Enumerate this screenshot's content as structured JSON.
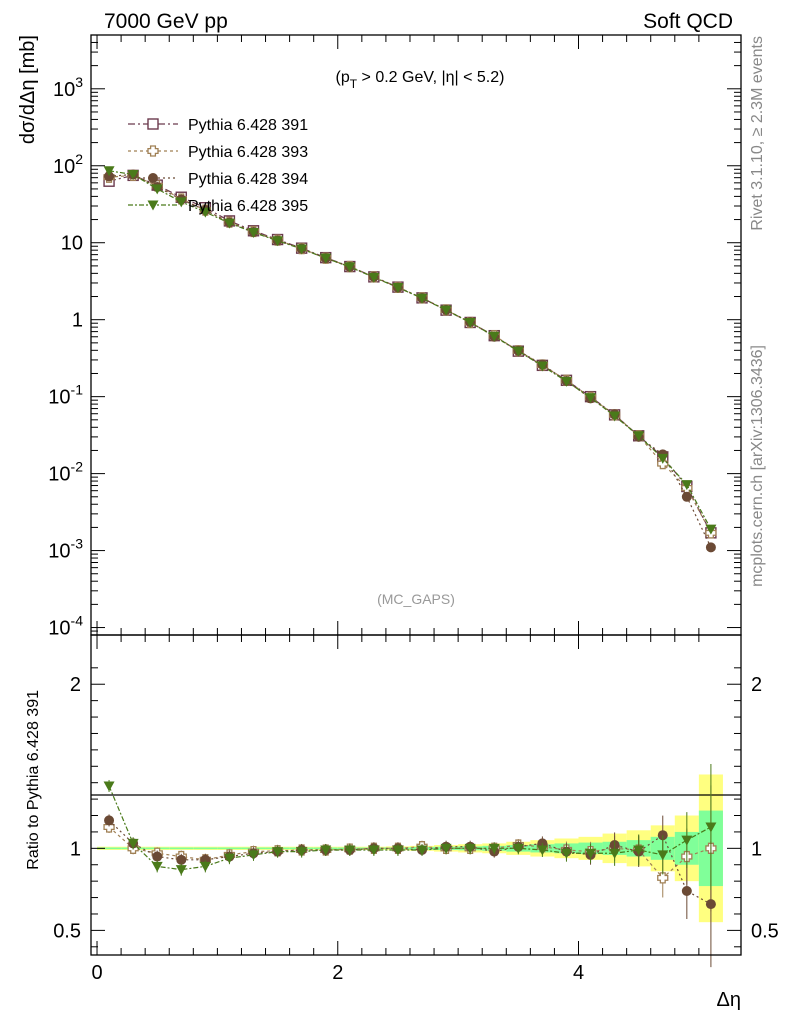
{
  "header": {
    "left": "7000 GeV pp",
    "right": "Soft QCD"
  },
  "side_labels": {
    "rivet": "Rivet 3.1.10, ≥ 2.3M events",
    "mcplots": "mcplots.cern.ch [arXiv:1306.3436]"
  },
  "chart_data": [
    {
      "type": "line",
      "panel": "main",
      "title": "",
      "annotation": "(p_T > 0.2 GeV, |η| < 5.2)",
      "watermark": "(MC_GAPS)",
      "ylabel": "dσ/dΔη [mb]",
      "yscale": "log",
      "ylim": [
        8e-05,
        5000
      ],
      "xlim": [
        -0.05,
        5.35
      ],
      "ytick_labels": [
        "10^-4",
        "10^-3",
        "10^-2",
        "10^-1",
        "1",
        "10",
        "10^2",
        "10^3"
      ],
      "legend_position": "top-left",
      "x": [
        0.1,
        0.3,
        0.5,
        0.7,
        0.9,
        1.1,
        1.3,
        1.5,
        1.7,
        1.9,
        2.1,
        2.3,
        2.5,
        2.7,
        2.9,
        3.1,
        3.3,
        3.5,
        3.7,
        3.9,
        4.1,
        4.3,
        4.5,
        4.7,
        4.9,
        5.1
      ],
      "series": [
        {
          "name": "Pythia 6.428 391",
          "color": "#6b3a4e",
          "marker": "open-square",
          "values": [
            63,
            75,
            56,
            39,
            28.5,
            19.2,
            14.3,
            11.0,
            8.5,
            6.4,
            4.9,
            3.6,
            2.65,
            1.92,
            1.33,
            0.92,
            0.62,
            0.39,
            0.255,
            0.163,
            0.1,
            0.058,
            0.031,
            0.0165,
            0.0068,
            0.0017
          ]
        },
        {
          "name": "Pythia 6.428 393",
          "color": "#a08055",
          "marker": "open-cross",
          "values": [
            71,
            75,
            55,
            37,
            26.5,
            18.5,
            14.0,
            10.8,
            8.4,
            6.3,
            4.9,
            3.6,
            2.63,
            1.92,
            1.34,
            0.92,
            0.62,
            0.395,
            0.258,
            0.163,
            0.098,
            0.058,
            0.031,
            0.0135,
            0.0065,
            0.0017
          ]
        },
        {
          "name": "Pythia 6.428 394",
          "color": "#6b4a35",
          "marker": "filled-circle",
          "values": [
            73,
            77,
            53,
            36.5,
            26.5,
            18.3,
            13.8,
            10.7,
            8.4,
            6.3,
            4.85,
            3.6,
            2.62,
            1.91,
            1.34,
            0.93,
            0.6,
            0.395,
            0.262,
            0.16,
            0.095,
            0.059,
            0.03,
            0.0178,
            0.005,
            0.0011
          ]
        },
        {
          "name": "Pythia 6.428 395",
          "color": "#4a7a1a",
          "marker": "filled-triangle-down",
          "values": [
            86,
            77,
            50,
            34,
            25,
            18.0,
            13.6,
            10.6,
            8.3,
            6.3,
            4.85,
            3.55,
            2.62,
            1.9,
            1.33,
            0.92,
            0.61,
            0.39,
            0.25,
            0.158,
            0.097,
            0.056,
            0.031,
            0.0158,
            0.0072,
            0.0019
          ]
        }
      ]
    },
    {
      "type": "line",
      "panel": "ratio",
      "ylabel": "Ratio to Pythia 6.428 391",
      "xlabel": "Δη",
      "ylim": [
        0.35,
        2.3
      ],
      "xlim": [
        -0.05,
        5.35
      ],
      "xtick_labels": [
        "0",
        "2",
        "4"
      ],
      "ytick_labels": [
        "0.5",
        "1",
        "2"
      ],
      "x": [
        0.1,
        0.3,
        0.5,
        0.7,
        0.9,
        1.1,
        1.3,
        1.5,
        1.7,
        1.9,
        2.1,
        2.3,
        2.5,
        2.7,
        2.9,
        3.1,
        3.3,
        3.5,
        3.7,
        3.9,
        4.1,
        4.3,
        4.5,
        4.7,
        4.9,
        5.1
      ],
      "band_green_halfwidth": [
        0.005,
        0.005,
        0.005,
        0.005,
        0.005,
        0.005,
        0.005,
        0.005,
        0.005,
        0.005,
        0.005,
        0.005,
        0.005,
        0.008,
        0.01,
        0.012,
        0.015,
        0.02,
        0.025,
        0.03,
        0.035,
        0.04,
        0.05,
        0.07,
        0.1,
        0.23
      ],
      "band_yellow_halfwidth": [
        0.01,
        0.01,
        0.01,
        0.01,
        0.01,
        0.01,
        0.01,
        0.01,
        0.01,
        0.01,
        0.01,
        0.01,
        0.012,
        0.015,
        0.02,
        0.025,
        0.03,
        0.04,
        0.05,
        0.06,
        0.07,
        0.09,
        0.11,
        0.14,
        0.2,
        0.45
      ],
      "series": [
        {
          "name": "Pythia 6.428 393",
          "color": "#a08055",
          "marker": "open-cross",
          "values": [
            1.13,
            1.0,
            0.97,
            0.95,
            0.93,
            0.96,
            0.98,
            0.985,
            0.99,
            0.99,
            0.995,
            1.0,
            1.0,
            1.01,
            1.0,
            1.0,
            1.0,
            1.02,
            1.01,
            0.99,
            0.98,
            1.0,
            0.99,
            0.82,
            0.95,
            1.0
          ]
        },
        {
          "name": "Pythia 6.428 394",
          "color": "#6b4a35",
          "marker": "filled-circle",
          "values": [
            1.17,
            1.03,
            0.95,
            0.93,
            0.93,
            0.95,
            0.97,
            0.98,
            0.99,
            0.99,
            0.99,
            1.0,
            1.0,
            0.99,
            1.01,
            1.01,
            0.98,
            1.01,
            1.03,
            0.98,
            0.96,
            1.02,
            0.98,
            1.08,
            0.74,
            0.66
          ]
        },
        {
          "name": "Pythia 6.428 395",
          "color": "#4a7a1a",
          "marker": "filled-triangle-down",
          "values": [
            1.38,
            1.03,
            0.89,
            0.87,
            0.89,
            0.94,
            0.96,
            0.98,
            0.98,
            0.99,
            0.99,
            0.99,
            0.99,
            0.99,
            1.0,
            1.0,
            1.0,
            1.0,
            0.99,
            0.97,
            0.97,
            0.97,
            0.99,
            0.96,
            1.05,
            1.13
          ]
        }
      ]
    }
  ]
}
